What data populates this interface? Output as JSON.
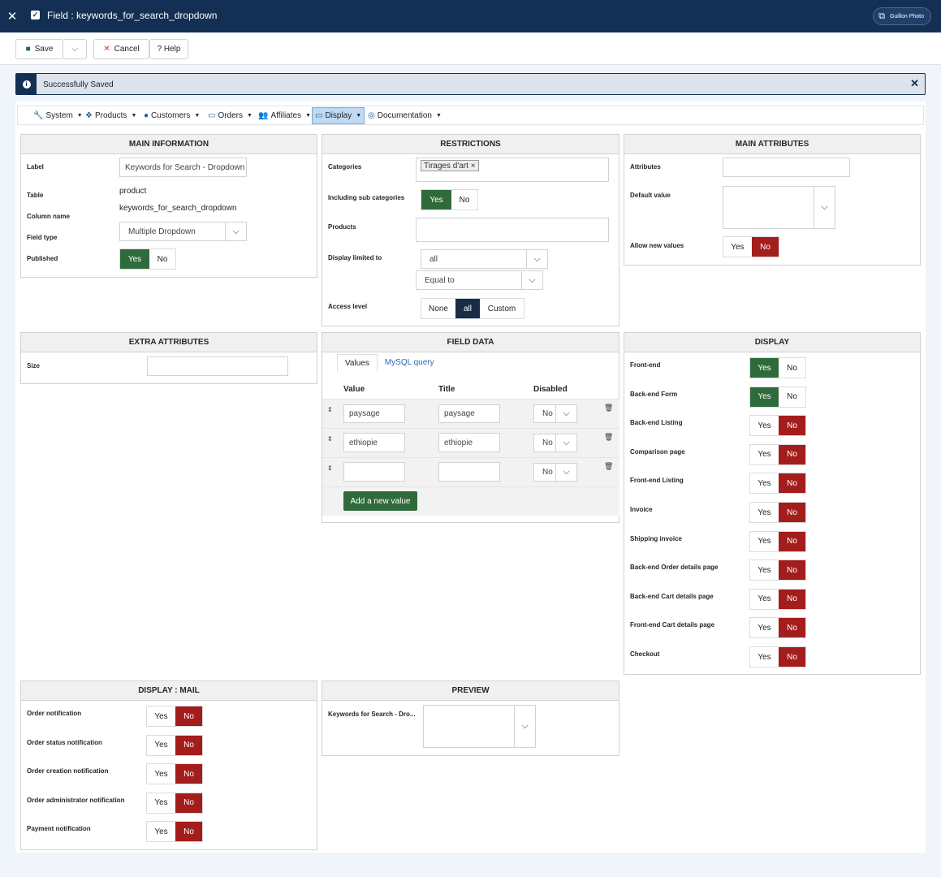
{
  "topbar": {
    "title": "Field : keywords_for_search_dropdown",
    "user_label": "Guillon Photo"
  },
  "toolbar": {
    "save": "Save",
    "cancel": "Cancel",
    "help": "? Help"
  },
  "alert": {
    "message": "Successfully Saved"
  },
  "menu": [
    "System",
    "Products",
    "Customers",
    "Orders",
    "Affiliates",
    "Display",
    "Documentation"
  ],
  "main_info": {
    "title": "MAIN INFORMATION",
    "label_lbl": "Label",
    "label_val": "Keywords for Search - Dropdown",
    "table_lbl": "Table",
    "table_val": "product",
    "column_lbl": "Column name",
    "column_val": "keywords_for_search_dropdown",
    "fieldtype_lbl": "Field type",
    "fieldtype_val": "Multiple Dropdown",
    "published_lbl": "Published",
    "yes": "Yes",
    "no": "No"
  },
  "restrictions": {
    "title": "RESTRICTIONS",
    "categories_lbl": "Categories",
    "category_tag": "Tirages d'art",
    "subcat_lbl": "Including sub categories",
    "yes": "Yes",
    "no": "No",
    "products_lbl": "Products",
    "display_lbl": "Display limited to",
    "display_val": "all",
    "equal_val": "Equal to",
    "access_lbl": "Access level",
    "access_none": "None",
    "access_all": "all",
    "access_custom": "Custom"
  },
  "main_attr": {
    "title": "MAIN ATTRIBUTES",
    "attributes_lbl": "Attributes",
    "default_lbl": "Default value",
    "allownew_lbl": "Allow new values",
    "yes": "Yes",
    "no": "No"
  },
  "extra_attr": {
    "title": "EXTRA ATTRIBUTES",
    "size_lbl": "Size"
  },
  "field_data": {
    "title": "FIELD DATA",
    "tab_values": "Values",
    "tab_mysql": "MySQL query",
    "col_value": "Value",
    "col_title": "Title",
    "col_disabled": "Disabled",
    "rows": [
      {
        "value": "paysage",
        "title": "paysage",
        "disabled": "No"
      },
      {
        "value": "ethiopie",
        "title": "ethiopie",
        "disabled": "No"
      },
      {
        "value": "",
        "title": "",
        "disabled": "No"
      }
    ],
    "add_button": "Add a new value"
  },
  "display": {
    "title": "DISPLAY",
    "yes": "Yes",
    "no": "No",
    "items": [
      {
        "label": "Front-end",
        "on": "yes"
      },
      {
        "label": "Back-end Form",
        "on": "yes"
      },
      {
        "label": "Back-end Listing",
        "on": "no"
      },
      {
        "label": "Comparison page",
        "on": "no"
      },
      {
        "label": "Front-end Listing",
        "on": "no"
      },
      {
        "label": "Invoice",
        "on": "no"
      },
      {
        "label": "Shipping invoice",
        "on": "no"
      },
      {
        "label": "Back-end Order details page",
        "on": "no"
      },
      {
        "label": "Back-end Cart details page",
        "on": "no"
      },
      {
        "label": "Front-end Cart details page",
        "on": "no"
      },
      {
        "label": "Checkout",
        "on": "no"
      }
    ]
  },
  "display_mail": {
    "title": "DISPLAY : MAIL",
    "yes": "Yes",
    "no": "No",
    "items": [
      {
        "label": "Order notification",
        "on": "no"
      },
      {
        "label": "Order status notification",
        "on": "no"
      },
      {
        "label": "Order creation notification",
        "on": "no"
      },
      {
        "label": "Order administrator notification",
        "on": "no"
      },
      {
        "label": "Payment notification",
        "on": "no"
      }
    ]
  },
  "preview": {
    "title": "PREVIEW",
    "label": "Keywords for Search - Dro..."
  },
  "colors": {
    "navy": "#132f53",
    "green": "#2f6b3a",
    "red": "#a31d1d",
    "active_menu": "#bedaf4"
  }
}
